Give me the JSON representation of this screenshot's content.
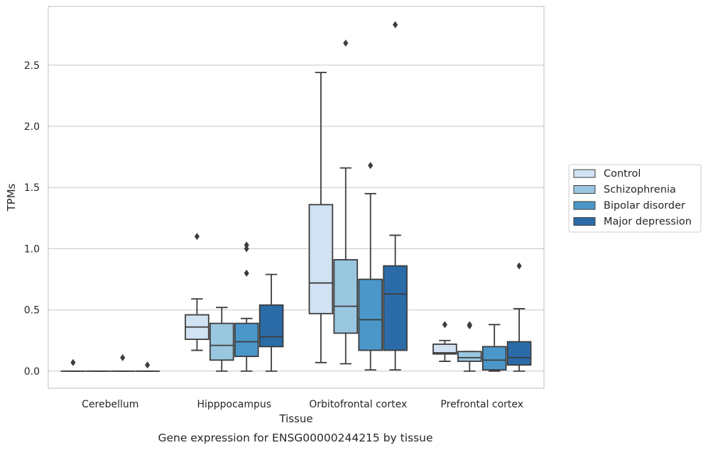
{
  "chart_data": {
    "type": "box",
    "title": "",
    "caption": "Gene expression for ENSG00000244215 by tissue",
    "xlabel": "Tissue",
    "ylabel": "TPMs",
    "ylim": [
      -0.14,
      2.98
    ],
    "yticks": [
      0.0,
      0.5,
      1.0,
      1.5,
      2.0,
      2.5
    ],
    "ytick_labels": [
      "0.0",
      "0.5",
      "1.0",
      "1.5",
      "2.0",
      "2.5"
    ],
    "grid": "horizontal",
    "legend_position": "right",
    "categories": [
      "Cerebellum",
      "Hipppocampus",
      "Orbitofrontal cortex",
      "Prefrontal cortex"
    ],
    "series": [
      {
        "name": "Control",
        "color": "#d1e2f2",
        "boxes": [
          {
            "low": 0.0,
            "q1": 0.0,
            "median": 0.0,
            "q3": 0.0,
            "high": 0.0,
            "outliers": [
              0.07
            ]
          },
          {
            "low": 0.17,
            "q1": 0.26,
            "median": 0.36,
            "q3": 0.46,
            "high": 0.59,
            "outliers": [
              1.1
            ]
          },
          {
            "low": 0.07,
            "q1": 0.47,
            "median": 0.72,
            "q3": 1.36,
            "high": 2.44,
            "outliers": []
          },
          {
            "low": 0.08,
            "q1": 0.14,
            "median": 0.15,
            "q3": 0.22,
            "high": 0.25,
            "outliers": [
              0.38
            ]
          }
        ]
      },
      {
        "name": "Schizophrenia",
        "color": "#9ac7e0",
        "boxes": [
          {
            "low": 0.0,
            "q1": 0.0,
            "median": 0.0,
            "q3": 0.0,
            "high": 0.0,
            "outliers": []
          },
          {
            "low": 0.0,
            "q1": 0.09,
            "median": 0.21,
            "q3": 0.39,
            "high": 0.52,
            "outliers": []
          },
          {
            "low": 0.06,
            "q1": 0.31,
            "median": 0.53,
            "q3": 0.91,
            "high": 1.66,
            "outliers": [
              2.68
            ]
          },
          {
            "low": 0.0,
            "q1": 0.08,
            "median": 0.11,
            "q3": 0.16,
            "high": 0.16,
            "outliers": [
              0.37,
              0.38
            ]
          }
        ]
      },
      {
        "name": "Bipolar disorder",
        "color": "#4b97c9",
        "boxes": [
          {
            "low": 0.0,
            "q1": 0.0,
            "median": 0.0,
            "q3": 0.0,
            "high": 0.0,
            "outliers": [
              0.11
            ]
          },
          {
            "low": 0.0,
            "q1": 0.12,
            "median": 0.24,
            "q3": 0.39,
            "high": 0.43,
            "outliers": [
              0.8,
              1.0,
              1.03
            ]
          },
          {
            "low": 0.01,
            "q1": 0.17,
            "median": 0.42,
            "q3": 0.75,
            "high": 1.45,
            "outliers": [
              1.68
            ]
          },
          {
            "low": 0.0,
            "q1": 0.01,
            "median": 0.09,
            "q3": 0.2,
            "high": 0.38,
            "outliers": []
          }
        ]
      },
      {
        "name": "Major depression",
        "color": "#2b6ba8",
        "boxes": [
          {
            "low": 0.0,
            "q1": 0.0,
            "median": 0.0,
            "q3": 0.0,
            "high": 0.0,
            "outliers": [
              0.05
            ]
          },
          {
            "low": 0.0,
            "q1": 0.2,
            "median": 0.28,
            "q3": 0.54,
            "high": 0.79,
            "outliers": []
          },
          {
            "low": 0.01,
            "q1": 0.17,
            "median": 0.63,
            "q3": 0.86,
            "high": 1.11,
            "outliers": [
              2.83
            ]
          },
          {
            "low": 0.0,
            "q1": 0.05,
            "median": 0.11,
            "q3": 0.24,
            "high": 0.51,
            "outliers": [
              0.86
            ]
          }
        ]
      }
    ]
  }
}
